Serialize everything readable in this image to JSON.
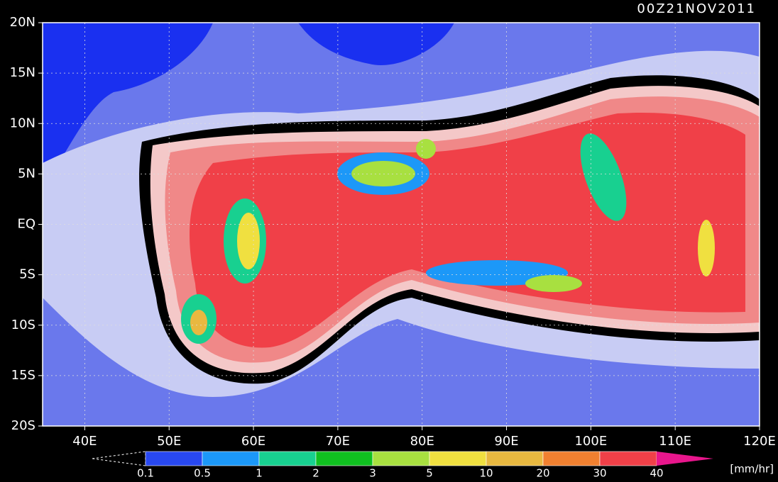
{
  "map": {
    "title": "00Z21NOV2011",
    "lon_range": [
      35,
      120
    ],
    "lat_range": [
      -20,
      20
    ],
    "lon_ticks": [
      {
        "value": 40,
        "label": "40E"
      },
      {
        "value": 50,
        "label": "50E"
      },
      {
        "value": 60,
        "label": "60E"
      },
      {
        "value": 70,
        "label": "70E"
      },
      {
        "value": 80,
        "label": "80E"
      },
      {
        "value": 90,
        "label": "90E"
      },
      {
        "value": 100,
        "label": "100E"
      },
      {
        "value": 110,
        "label": "110E"
      },
      {
        "value": 120,
        "label": "120E"
      }
    ],
    "lat_ticks": [
      {
        "value": 20,
        "label": "20N"
      },
      {
        "value": 15,
        "label": "15N"
      },
      {
        "value": 10,
        "label": "10N"
      },
      {
        "value": 5,
        "label": "5N"
      },
      {
        "value": 0,
        "label": "EQ"
      },
      {
        "value": -5,
        "label": "5S"
      },
      {
        "value": -10,
        "label": "10S"
      },
      {
        "value": -15,
        "label": "15S"
      },
      {
        "value": -20,
        "label": "20S"
      }
    ]
  },
  "colorbar": {
    "levels": [
      0.1,
      0.5,
      1,
      2,
      3,
      5,
      10,
      20,
      30,
      40
    ],
    "colors": [
      "#2848f0",
      "#1c98f8",
      "#18d090",
      "#10c020",
      "#a8e040",
      "#f0e040",
      "#e8b840",
      "#f08030",
      "#f04048",
      "#e8168c"
    ],
    "units": "[mm/hr]"
  }
}
